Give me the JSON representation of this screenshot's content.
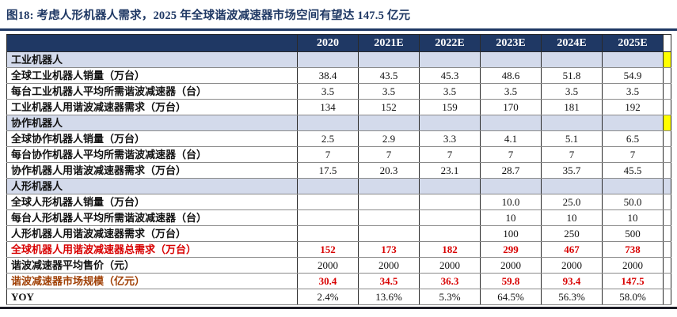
{
  "title": "图18: 考虑人形机器人需求，2025 年全球谐波减速器市场空间有望达 147.5 亿元",
  "colors": {
    "navy": "#1F3864",
    "section": "#D3DAEB",
    "red": "#D80000",
    "rust": "#A04005",
    "yellow": "#FFFF00"
  },
  "chart_data": {
    "type": "table",
    "columns": [
      "",
      "2020",
      "2021E",
      "2022E",
      "2023E",
      "2024E",
      "2025E"
    ],
    "rows": [
      {
        "type": "section",
        "label": "工业机器人",
        "values": [
          "",
          "",
          "",
          "",
          "",
          ""
        ],
        "sliver": "yellow"
      },
      {
        "type": "data",
        "label": "全球工业机器人销量（万台）",
        "values": [
          "38.4",
          "43.5",
          "45.3",
          "48.6",
          "51.8",
          "54.9"
        ]
      },
      {
        "type": "data",
        "label": "每台工业机器人平均所需谐波减速器（台）",
        "values": [
          "3.5",
          "3.5",
          "3.5",
          "3.5",
          "3.5",
          "3.5"
        ]
      },
      {
        "type": "data",
        "label": "工业机器人用谐波减速器需求（万台）",
        "values": [
          "134",
          "152",
          "159",
          "170",
          "181",
          "192"
        ]
      },
      {
        "type": "section",
        "label": "协作机器人",
        "values": [
          "",
          "",
          "",
          "",
          "",
          ""
        ],
        "sliver": "yellow"
      },
      {
        "type": "data",
        "label": "全球协作机器人销量（万台）",
        "values": [
          "2.5",
          "2.9",
          "3.3",
          "4.1",
          "5.1",
          "6.5"
        ]
      },
      {
        "type": "data",
        "label": "每台协作机器人平均所需谐波减速器（台）",
        "values": [
          "7",
          "7",
          "7",
          "7",
          "7",
          "7"
        ]
      },
      {
        "type": "data",
        "label": "协作机器人用谐波减速器需求（万台）",
        "values": [
          "17.5",
          "20.3",
          "23.1",
          "28.7",
          "35.7",
          "45.5"
        ]
      },
      {
        "type": "section",
        "label": "人形机器人",
        "values": [
          "",
          "",
          "",
          "",
          "",
          ""
        ],
        "sliver": "lavender"
      },
      {
        "type": "data",
        "label": "全球人形机器人销量（万台）",
        "values": [
          "",
          "",
          "",
          "10.0",
          "25.0",
          "50.0"
        ]
      },
      {
        "type": "data",
        "label": "每台人形机器人平均所需谐波减速器（台）",
        "values": [
          "",
          "",
          "",
          "10",
          "10",
          "10"
        ]
      },
      {
        "type": "data",
        "label": "人形机器人用谐波减速器需求（万台）",
        "values": [
          "",
          "",
          "",
          "100",
          "250",
          "500"
        ]
      },
      {
        "type": "total",
        "label": "全球机器人用谐波减速器总需求（万台）",
        "values": [
          "152",
          "173",
          "182",
          "299",
          "467",
          "738"
        ]
      },
      {
        "type": "data",
        "label": "谐波减速器平均售价（元）",
        "values": [
          "2000",
          "2000",
          "2000",
          "2000",
          "2000",
          "2000"
        ]
      },
      {
        "type": "market",
        "label": "谐波减速器市场规模（亿元）",
        "values": [
          "30.4",
          "34.5",
          "36.3",
          "59.8",
          "93.4",
          "147.5"
        ]
      },
      {
        "type": "yoy",
        "label": "YOY",
        "values": [
          "2.4%",
          "13.6%",
          "5.3%",
          "64.5%",
          "56.3%",
          "58.0%"
        ]
      }
    ]
  }
}
